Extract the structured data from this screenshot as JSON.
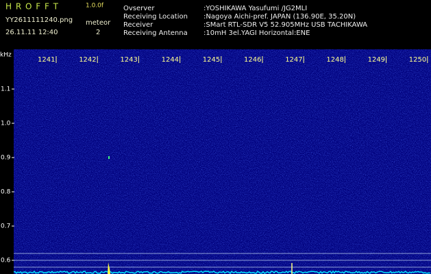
{
  "header": {
    "title": "H R O F F T",
    "version": "1.0.0f",
    "filename": "YY2611111240.png",
    "datetime": "26.11.11 12:40",
    "meteor_label": "meteor",
    "meteor_count": "2"
  },
  "info": {
    "rows": [
      {
        "label": "Ovserver",
        "value": ":YOSHIKAWA Yasufumi /JG2MLI"
      },
      {
        "label": "Receiving Location",
        "value": ":Nagoya Aichi-pref. JAPAN (136.90E, 35.20N)"
      },
      {
        "label": "Receiver",
        "value": ":SMart RTL-SDR V5 52.905MHz USB TACHIKAWA"
      },
      {
        "label": "Receiving Antenna",
        "value": ":10mH 3el.YAGI Horizontal:ENE"
      }
    ]
  },
  "axis": {
    "unit": "kHz",
    "x_labels": [
      "1241",
      "1242",
      "1243",
      "1244",
      "1245",
      "1246",
      "1247",
      "1248",
      "1249",
      "1250"
    ],
    "y_labels": [
      "1.1",
      "1.0",
      "0.9",
      "0.8",
      "0.7",
      "0.6"
    ]
  }
}
